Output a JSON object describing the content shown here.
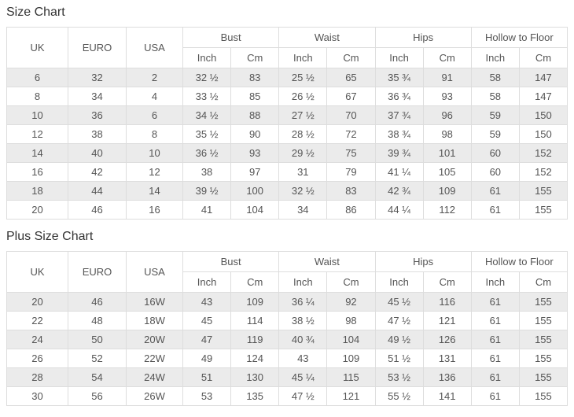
{
  "tables": [
    {
      "title": "Size Chart",
      "header": {
        "uk": "UK",
        "euro": "EURO",
        "usa": "USA",
        "groups": [
          "Bust",
          "Waist",
          "Hips",
          "Hollow to Floor"
        ],
        "sub": [
          "Inch",
          "Cm"
        ]
      },
      "rows": [
        [
          "6",
          "32",
          "2",
          "32 ½",
          "83",
          "25 ½",
          "65",
          "35 ¾",
          "91",
          "58",
          "147"
        ],
        [
          "8",
          "34",
          "4",
          "33 ½",
          "85",
          "26 ½",
          "67",
          "36 ¾",
          "93",
          "58",
          "147"
        ],
        [
          "10",
          "36",
          "6",
          "34 ½",
          "88",
          "27 ½",
          "70",
          "37 ¾",
          "96",
          "59",
          "150"
        ],
        [
          "12",
          "38",
          "8",
          "35 ½",
          "90",
          "28 ½",
          "72",
          "38 ¾",
          "98",
          "59",
          "150"
        ],
        [
          "14",
          "40",
          "10",
          "36 ½",
          "93",
          "29 ½",
          "75",
          "39 ¾",
          "101",
          "60",
          "152"
        ],
        [
          "16",
          "42",
          "12",
          "38",
          "97",
          "31",
          "79",
          "41 ¼",
          "105",
          "60",
          "152"
        ],
        [
          "18",
          "44",
          "14",
          "39 ½",
          "100",
          "32 ½",
          "83",
          "42 ¾",
          "109",
          "61",
          "155"
        ],
        [
          "20",
          "46",
          "16",
          "41",
          "104",
          "34",
          "86",
          "44 ¼",
          "112",
          "61",
          "155"
        ]
      ]
    },
    {
      "title": "Plus Size Chart",
      "header": {
        "uk": "UK",
        "euro": "EURO",
        "usa": "USA",
        "groups": [
          "Bust",
          "Waist",
          "Hips",
          "Hollow to Floor"
        ],
        "sub": [
          "Inch",
          "Cm"
        ]
      },
      "rows": [
        [
          "20",
          "46",
          "16W",
          "43",
          "109",
          "36 ¼",
          "92",
          "45 ½",
          "116",
          "61",
          "155"
        ],
        [
          "22",
          "48",
          "18W",
          "45",
          "114",
          "38 ½",
          "98",
          "47 ½",
          "121",
          "61",
          "155"
        ],
        [
          "24",
          "50",
          "20W",
          "47",
          "119",
          "40 ¾",
          "104",
          "49 ½",
          "126",
          "61",
          "155"
        ],
        [
          "26",
          "52",
          "22W",
          "49",
          "124",
          "43",
          "109",
          "51 ½",
          "131",
          "61",
          "155"
        ],
        [
          "28",
          "54",
          "24W",
          "51",
          "130",
          "45 ¼",
          "115",
          "53 ½",
          "136",
          "61",
          "155"
        ],
        [
          "30",
          "56",
          "26W",
          "53",
          "135",
          "47 ½",
          "121",
          "55 ½",
          "141",
          "61",
          "155"
        ]
      ]
    }
  ],
  "colors": {
    "stripe": "#ebebeb",
    "border": "#dddddd",
    "text": "#555555",
    "title_text": "#333333",
    "background": "#ffffff"
  }
}
